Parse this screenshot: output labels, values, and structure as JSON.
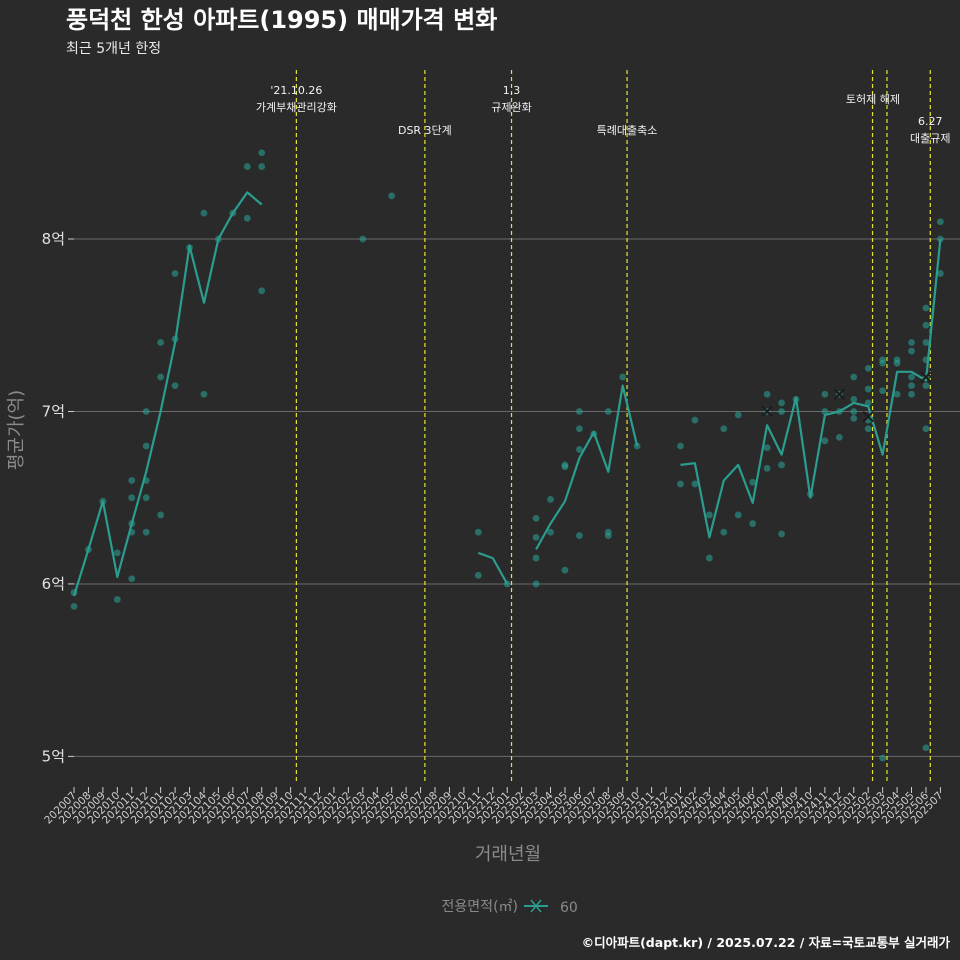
{
  "chart_data": {
    "type": "line",
    "title": "풍덕천 한성 아파트(1995) 매매가격 변화",
    "subtitle": "최근 5개년 한정",
    "xlabel": "거래년월",
    "ylabel": "평균가(억)",
    "ylim": [
      4.84,
      8.98
    ],
    "yticks": [
      5,
      6,
      7,
      8
    ],
    "ytick_labels": [
      "5억",
      "6억",
      "7억",
      "8억"
    ],
    "grid": true,
    "categories": [
      "202007",
      "202008",
      "202009",
      "202010",
      "202011",
      "202012",
      "202101",
      "202102",
      "202103",
      "202104",
      "202105",
      "202106",
      "202107",
      "202108",
      "202109",
      "202110",
      "202111",
      "202112",
      "202201",
      "202202",
      "202203",
      "202204",
      "202205",
      "202206",
      "202207",
      "202208",
      "202209",
      "202210",
      "202211",
      "202212",
      "202301",
      "202302",
      "202303",
      "202304",
      "202305",
      "202306",
      "202307",
      "202308",
      "202309",
      "202310",
      "202311",
      "202312",
      "202401",
      "202402",
      "202403",
      "202404",
      "202405",
      "202406",
      "202407",
      "202408",
      "202409",
      "202410",
      "202411",
      "202412",
      "202501",
      "202502",
      "202503",
      "202504",
      "202505",
      "202506",
      "202507"
    ],
    "series": [
      {
        "name": "60",
        "line": [
          [
            0,
            5.93
          ],
          [
            1,
            6.2
          ],
          [
            2,
            6.48
          ],
          [
            3,
            6.04
          ],
          [
            4,
            6.35
          ],
          [
            5,
            6.65
          ],
          [
            6,
            7.0
          ],
          [
            7,
            7.4
          ],
          [
            8,
            7.96
          ],
          [
            9,
            7.63
          ],
          [
            10,
            8.0
          ],
          [
            11,
            8.15
          ],
          [
            12,
            8.27
          ],
          [
            13,
            8.2
          ],
          null,
          [
            28,
            6.18
          ],
          [
            29,
            6.15
          ],
          [
            30,
            6.0
          ],
          null,
          [
            32,
            6.2
          ],
          [
            33,
            6.35
          ],
          [
            34,
            6.48
          ],
          [
            35,
            6.73
          ],
          [
            36,
            6.88
          ],
          [
            37,
            6.65
          ],
          [
            38,
            7.15
          ],
          [
            39,
            6.8
          ],
          null,
          [
            42,
            6.69
          ],
          [
            43,
            6.7
          ],
          [
            44,
            6.27
          ],
          [
            45,
            6.6
          ],
          [
            46,
            6.69
          ],
          [
            47,
            6.47
          ],
          [
            48,
            6.92
          ],
          [
            49,
            6.75
          ],
          [
            50,
            7.08
          ],
          [
            51,
            6.5
          ],
          [
            52,
            6.98
          ],
          [
            53,
            7.0
          ],
          [
            54,
            7.05
          ],
          [
            55,
            7.03
          ],
          [
            56,
            6.75
          ],
          [
            57,
            7.23
          ],
          [
            58,
            7.23
          ],
          [
            59,
            7.18
          ],
          [
            60,
            8.0
          ]
        ],
        "points": [
          [
            0,
            5.95
          ],
          [
            0,
            5.87
          ],
          [
            1,
            6.2
          ],
          [
            2,
            6.48
          ],
          [
            3,
            6.18
          ],
          [
            3,
            5.91
          ],
          [
            4,
            6.6
          ],
          [
            4,
            6.5
          ],
          [
            4,
            6.35
          ],
          [
            4,
            6.3
          ],
          [
            4,
            6.03
          ],
          [
            5,
            7.0
          ],
          [
            5,
            6.8
          ],
          [
            5,
            6.6
          ],
          [
            5,
            6.5
          ],
          [
            5,
            6.3
          ],
          [
            6,
            7.4
          ],
          [
            6,
            7.2
          ],
          [
            6,
            6.4
          ],
          [
            7,
            7.8
          ],
          [
            7,
            7.42
          ],
          [
            7,
            7.15
          ],
          [
            8,
            7.95
          ],
          [
            9,
            8.15
          ],
          [
            9,
            7.1
          ],
          [
            10,
            8.0
          ],
          [
            11,
            8.15
          ],
          [
            12,
            8.42
          ],
          [
            12,
            8.12
          ],
          [
            13,
            8.5
          ],
          [
            13,
            8.42
          ],
          [
            13,
            7.7
          ],
          [
            20,
            8.0
          ],
          [
            22,
            8.25
          ],
          [
            28,
            6.3
          ],
          [
            28,
            6.05
          ],
          [
            30,
            6.0
          ],
          [
            32,
            6.38
          ],
          [
            32,
            6.27
          ],
          [
            32,
            6.15
          ],
          [
            32,
            6.0
          ],
          [
            33,
            6.49
          ],
          [
            33,
            6.3
          ],
          [
            34,
            6.69
          ],
          [
            34,
            6.68
          ],
          [
            34,
            6.08
          ],
          [
            35,
            7.0
          ],
          [
            35,
            6.9
          ],
          [
            35,
            6.78
          ],
          [
            35,
            6.28
          ],
          [
            36,
            6.87
          ],
          [
            37,
            7.0
          ],
          [
            37,
            6.3
          ],
          [
            37,
            6.28
          ],
          [
            38,
            7.2
          ],
          [
            39,
            6.8
          ],
          [
            42,
            6.8
          ],
          [
            42,
            6.58
          ],
          [
            43,
            6.95
          ],
          [
            43,
            6.58
          ],
          [
            44,
            6.4
          ],
          [
            44,
            6.15
          ],
          [
            45,
            6.9
          ],
          [
            45,
            6.3
          ],
          [
            46,
            6.98
          ],
          [
            46,
            6.4
          ],
          [
            47,
            6.59
          ],
          [
            47,
            6.35
          ],
          [
            48,
            7.1
          ],
          [
            48,
            7.0
          ],
          [
            48,
            6.79
          ],
          [
            48,
            6.67
          ],
          [
            49,
            7.05
          ],
          [
            49,
            7.0
          ],
          [
            49,
            6.69
          ],
          [
            49,
            6.29
          ],
          [
            50,
            7.07
          ],
          [
            51,
            6.52
          ],
          [
            52,
            7.1
          ],
          [
            52,
            7.0
          ],
          [
            52,
            6.83
          ],
          [
            53,
            7.1
          ],
          [
            53,
            7.0
          ],
          [
            53,
            6.85
          ],
          [
            54,
            7.2
          ],
          [
            54,
            7.07
          ],
          [
            54,
            7.0
          ],
          [
            54,
            6.96
          ],
          [
            55,
            7.25
          ],
          [
            55,
            7.13
          ],
          [
            55,
            7.05
          ],
          [
            55,
            6.95
          ],
          [
            55,
            6.9
          ],
          [
            56,
            7.3
          ],
          [
            56,
            7.28
          ],
          [
            56,
            7.12
          ],
          [
            56,
            4.99
          ],
          [
            57,
            7.3
          ],
          [
            57,
            7.28
          ],
          [
            57,
            7.1
          ],
          [
            58,
            7.4
          ],
          [
            58,
            7.35
          ],
          [
            58,
            7.2
          ],
          [
            58,
            7.15
          ],
          [
            58,
            7.1
          ],
          [
            59,
            7.6
          ],
          [
            59,
            7.5
          ],
          [
            59,
            7.4
          ],
          [
            59,
            7.3
          ],
          [
            59,
            7.2
          ],
          [
            59,
            7.15
          ],
          [
            59,
            6.9
          ],
          [
            59,
            5.05
          ],
          [
            60,
            8.1
          ],
          [
            60,
            8.0
          ],
          [
            60,
            7.8
          ]
        ],
        "cross_points": [
          [
            48,
            7.0
          ],
          [
            53,
            7.1
          ],
          [
            55,
            6.97
          ],
          [
            59,
            7.2
          ]
        ]
      }
    ],
    "annotations": [
      {
        "x": 15.4,
        "lines": [
          "'21.10.26",
          "가계부채관리강화"
        ],
        "row": 1
      },
      {
        "x": 24.3,
        "lines": [
          "DSR 3단계"
        ],
        "row": 3
      },
      {
        "x": 30.3,
        "lines": [
          "1.3",
          "규제완화"
        ],
        "row": 1
      },
      {
        "x": 38.3,
        "lines": [
          "특례대출축소"
        ],
        "row": 3
      },
      {
        "x": 55.3,
        "lines": [],
        "row": 2
      },
      {
        "x": 56.3,
        "lines": [
          "토허제 해제"
        ],
        "row": 2
      },
      {
        "x": 59.3,
        "lines": [
          "6.27",
          "대출규제"
        ],
        "row": 3
      }
    ],
    "legend": {
      "title": "전용면적(㎡)",
      "placement": "bottom-center"
    },
    "colors": {
      "series": "#2a9d8f",
      "annotation_line": "#e5e52e",
      "grid": "#6a6a6a",
      "background": "#2a2a2b"
    }
  },
  "source_note": "©디아파트(dapt.kr) / 2025.07.22 / 자료=국토교통부 실거래가"
}
